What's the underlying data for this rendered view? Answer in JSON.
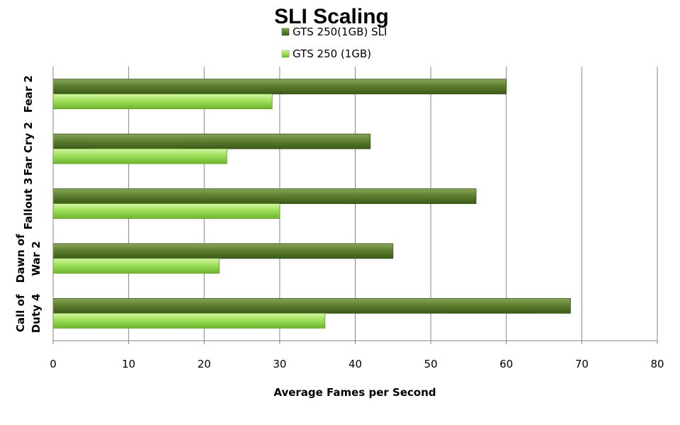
{
  "chart_data": {
    "type": "bar",
    "orientation": "horizontal",
    "title": "SLI Scaling",
    "xlabel": "Average Fames per Second",
    "ylabel": "",
    "xlim": [
      0,
      80
    ],
    "xticks": [
      0,
      10,
      20,
      30,
      40,
      50,
      60,
      70,
      80
    ],
    "grid": true,
    "legend_position": "top",
    "categories": [
      {
        "lines": [
          "Fear 2"
        ]
      },
      {
        "lines": [
          "Far Cry 2"
        ]
      },
      {
        "lines": [
          "Fallout 3"
        ]
      },
      {
        "lines": [
          "Dawn of",
          "War 2"
        ]
      },
      {
        "lines": [
          "Call of",
          "Duty 4"
        ]
      }
    ],
    "series": [
      {
        "name": "GTS 250(1GB) SLI",
        "color": "#5a7a2a",
        "values": [
          60,
          42,
          56,
          45,
          68.5
        ]
      },
      {
        "name": "GTS 250 (1GB)",
        "color": "#9ee05a",
        "values": [
          29,
          23,
          30,
          22,
          36
        ]
      }
    ]
  }
}
